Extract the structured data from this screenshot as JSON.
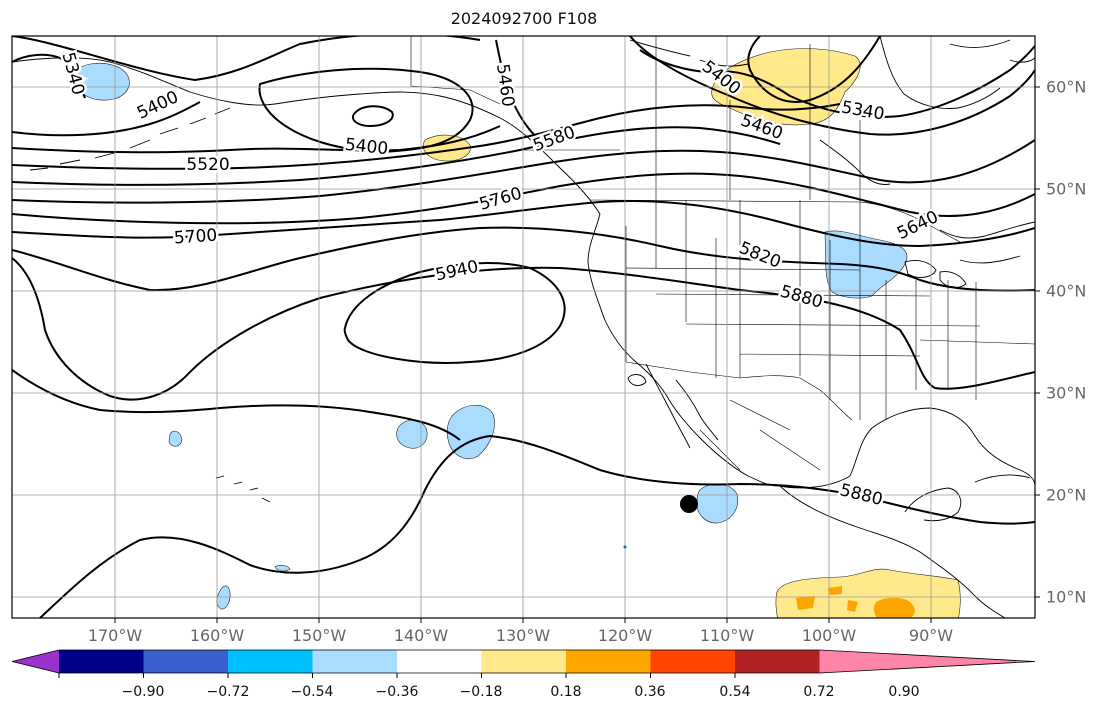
{
  "title": "2024092700 F108",
  "map": {
    "lon_labels": [
      "170°W",
      "160°W",
      "150°W",
      "140°W",
      "130°W",
      "120°W",
      "110°W",
      "100°W",
      "90°W"
    ],
    "lat_labels": [
      "60°N",
      "50°N",
      "40°N",
      "30°N",
      "20°N",
      "10°N"
    ],
    "contour_labels": [
      "5340",
      "5400",
      "5520",
      "5700",
      "5400",
      "5460",
      "5580",
      "5760",
      "5940",
      "5400",
      "5460",
      "5340",
      "5640",
      "5820",
      "5880",
      "5880"
    ],
    "colors": {
      "contour": "#000000",
      "coast": "#000000",
      "grid": "#9a9a9a",
      "fill_neg": "#aadcff",
      "fill_pos": "#ffe98a",
      "fill_pos2": "#ffa500",
      "marker": "#000000"
    }
  },
  "colorbar": {
    "colors": [
      "#9932cc",
      "#00008b",
      "#3a5fcd",
      "#00bfff",
      "#aadcff",
      "#ffffff",
      "#ffe98a",
      "#ffa500",
      "#ff4500",
      "#b22222",
      "#ff85a8"
    ],
    "tick_labels": [
      "−0.90",
      "−0.72",
      "−0.54",
      "−0.36",
      "−0.18",
      "0.18",
      "0.36",
      "0.54",
      "0.72",
      "0.90"
    ]
  }
}
